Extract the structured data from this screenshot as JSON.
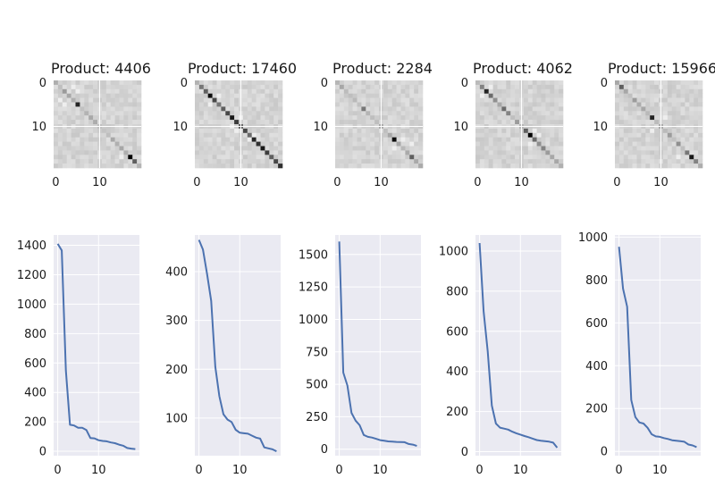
{
  "style": {
    "panel_bg": "#eaeaf2",
    "grid": "#ffffff",
    "line_color": "#4c72b0",
    "text_color": "#1a1a1a"
  },
  "heatmap_row": {
    "ticks_y": [
      "0",
      "10"
    ],
    "ticks_x": [
      "0",
      "10"
    ],
    "panels": [
      {
        "title": "Product: 4406",
        "hot": [
          [
            2,
            2,
            0.35
          ],
          [
            5,
            5,
            0.85
          ],
          [
            3,
            3,
            0.3
          ],
          [
            7,
            7,
            0.25
          ],
          [
            12,
            12,
            0.2
          ],
          [
            15,
            15,
            0.3
          ],
          [
            17,
            17,
            1.0
          ],
          [
            18,
            18,
            0.6
          ]
        ],
        "holes": [
          [
            4,
            1
          ],
          [
            1,
            4
          ],
          [
            5,
            2
          ],
          [
            2,
            5
          ],
          [
            17,
            15
          ]
        ]
      },
      {
        "title": "Product: 17460",
        "hot": [
          [
            1,
            1,
            0.5
          ],
          [
            2,
            2,
            0.6
          ],
          [
            3,
            3,
            0.95
          ],
          [
            4,
            4,
            0.7
          ],
          [
            5,
            5,
            0.5
          ],
          [
            6,
            6,
            0.6
          ],
          [
            7,
            7,
            0.7
          ],
          [
            8,
            8,
            0.9
          ],
          [
            9,
            9,
            0.75
          ],
          [
            10,
            10,
            0.6
          ],
          [
            11,
            11,
            0.7
          ],
          [
            12,
            12,
            0.55
          ],
          [
            13,
            13,
            0.85
          ],
          [
            14,
            14,
            0.8
          ],
          [
            15,
            15,
            0.9
          ],
          [
            16,
            16,
            0.75
          ],
          [
            17,
            17,
            0.6
          ],
          [
            18,
            18,
            0.7
          ],
          [
            19,
            19,
            0.8
          ]
        ],
        "holes": [
          [
            5,
            3
          ],
          [
            3,
            5
          ],
          [
            10,
            8
          ],
          [
            8,
            10
          ],
          [
            12,
            13
          ],
          [
            13,
            12
          ],
          [
            11,
            9
          ]
        ]
      },
      {
        "title": "Product: 2284",
        "hot": [
          [
            1,
            1,
            0.3
          ],
          [
            3,
            3,
            0.2
          ],
          [
            6,
            6,
            0.5
          ],
          [
            9,
            9,
            0.2
          ],
          [
            12,
            12,
            0.3
          ],
          [
            13,
            13,
            0.95
          ],
          [
            14,
            14,
            0.3
          ],
          [
            17,
            17,
            0.6
          ]
        ],
        "holes": [
          [
            13,
            15
          ],
          [
            15,
            13
          ],
          [
            14,
            17
          ]
        ]
      },
      {
        "title": "Product: 4062",
        "hot": [
          [
            1,
            1,
            0.45
          ],
          [
            2,
            2,
            0.85
          ],
          [
            3,
            3,
            0.55
          ],
          [
            4,
            4,
            0.4
          ],
          [
            6,
            6,
            0.55
          ],
          [
            7,
            7,
            0.45
          ],
          [
            9,
            9,
            0.35
          ],
          [
            11,
            11,
            0.6
          ],
          [
            12,
            12,
            1.0
          ],
          [
            13,
            13,
            0.55
          ],
          [
            14,
            14,
            0.4
          ],
          [
            15,
            15,
            0.45
          ],
          [
            16,
            16,
            0.35
          ],
          [
            17,
            17,
            0.3
          ],
          [
            18,
            18,
            0.3
          ]
        ],
        "holes": [
          [
            3,
            1
          ],
          [
            1,
            3
          ],
          [
            12,
            14
          ],
          [
            14,
            12
          ],
          [
            11,
            13
          ]
        ]
      },
      {
        "title": "Product: 15966",
        "hot": [
          [
            0,
            0,
            0.3
          ],
          [
            1,
            1,
            0.6
          ],
          [
            2,
            2,
            0.3
          ],
          [
            4,
            4,
            0.35
          ],
          [
            6,
            6,
            0.3
          ],
          [
            8,
            8,
            0.85
          ],
          [
            10,
            10,
            0.3
          ],
          [
            12,
            12,
            0.35
          ],
          [
            14,
            14,
            0.4
          ],
          [
            16,
            16,
            0.5
          ],
          [
            17,
            17,
            0.9
          ],
          [
            18,
            18,
            0.45
          ]
        ],
        "holes": [
          [
            8,
            11
          ],
          [
            11,
            8
          ],
          [
            17,
            14
          ]
        ]
      }
    ]
  },
  "chart_data": [
    {
      "type": "line",
      "x": [
        0,
        1,
        2,
        3,
        4,
        5,
        6,
        7,
        8,
        9,
        10,
        11,
        12,
        13,
        14,
        15,
        16,
        17,
        18,
        19
      ],
      "values": [
        1410,
        1365,
        550,
        180,
        175,
        160,
        160,
        145,
        90,
        88,
        75,
        70,
        68,
        60,
        55,
        45,
        38,
        22,
        18,
        15
      ],
      "ylim": [
        -30,
        1470
      ],
      "yticks": [
        0,
        200,
        400,
        600,
        800,
        1000,
        1200,
        1400
      ],
      "xticks": [
        0,
        10
      ]
    },
    {
      "type": "line",
      "x": [
        0,
        1,
        2,
        3,
        4,
        5,
        6,
        7,
        8,
        9,
        10,
        11,
        12,
        13,
        14,
        15,
        16,
        17,
        18,
        19
      ],
      "values": [
        465,
        445,
        395,
        340,
        205,
        145,
        108,
        97,
        92,
        76,
        70,
        69,
        68,
        64,
        60,
        58,
        40,
        38,
        36,
        32
      ],
      "ylim": [
        23,
        475
      ],
      "yticks": [
        100,
        200,
        300,
        400
      ],
      "xticks": [
        0,
        10
      ]
    },
    {
      "type": "line",
      "x": [
        0,
        1,
        2,
        3,
        4,
        5,
        6,
        7,
        8,
        9,
        10,
        11,
        12,
        13,
        14,
        15,
        16,
        17,
        18,
        19
      ],
      "values": [
        1600,
        590,
        490,
        280,
        220,
        185,
        110,
        95,
        90,
        80,
        70,
        65,
        60,
        58,
        56,
        55,
        54,
        40,
        35,
        25
      ],
      "ylim": [
        -50,
        1650
      ],
      "yticks": [
        0,
        250,
        500,
        750,
        1000,
        1250,
        1500
      ],
      "xticks": [
        0,
        10
      ]
    },
    {
      "type": "line",
      "x": [
        0,
        1,
        2,
        3,
        4,
        5,
        6,
        7,
        8,
        9,
        10,
        11,
        12,
        13,
        14,
        15,
        16,
        17,
        18,
        19
      ],
      "values": [
        1040,
        700,
        500,
        230,
        140,
        120,
        115,
        110,
        100,
        92,
        85,
        78,
        72,
        65,
        58,
        55,
        52,
        50,
        45,
        20
      ],
      "ylim": [
        -20,
        1080
      ],
      "yticks": [
        0,
        200,
        400,
        600,
        800,
        1000
      ],
      "xticks": [
        0,
        10
      ]
    },
    {
      "type": "line",
      "x": [
        0,
        1,
        2,
        3,
        4,
        5,
        6,
        7,
        8,
        9,
        10,
        11,
        12,
        13,
        14,
        15,
        16,
        17,
        18,
        19
      ],
      "values": [
        955,
        760,
        675,
        240,
        160,
        135,
        130,
        110,
        80,
        70,
        68,
        62,
        58,
        52,
        50,
        48,
        45,
        32,
        28,
        20
      ],
      "ylim": [
        -20,
        1010
      ],
      "yticks": [
        0,
        200,
        400,
        600,
        800,
        1000
      ],
      "xticks": [
        0,
        10
      ]
    }
  ]
}
